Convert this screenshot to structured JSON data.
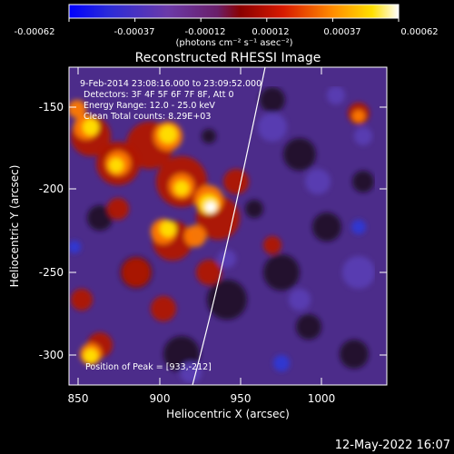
{
  "plot": {
    "title": "Reconstructed RHESSI Image",
    "xlabel": "Heliocentric X (arcsec)",
    "ylabel": "Heliocentric Y (arcsec)",
    "x_ticks": [
      "850",
      "900",
      "950",
      "1000"
    ],
    "y_ticks": [
      "-150",
      "-200",
      "-250",
      "-300"
    ],
    "footer_date": "12-May-2022 16:07"
  },
  "colorbar": {
    "ticks": [
      "-0.00062",
      "-0.00037",
      "-0.00012",
      "0.00012",
      "0.00037",
      "0.00062"
    ],
    "unit": "(photons cm⁻² s⁻¹ asec⁻²)"
  },
  "info": {
    "line1": "9-Feb-2014 23:08:16.000 to 23:09:52.000",
    "line2": "Detectors: 3F 4F 5F 6F 7F 8F, Att 0",
    "line3": "Energy Range: 12.0 - 25.0 keV",
    "line4": "Clean     Total counts: 8.29E+03",
    "peak": "Position of Peak = [933,-212]"
  }
}
